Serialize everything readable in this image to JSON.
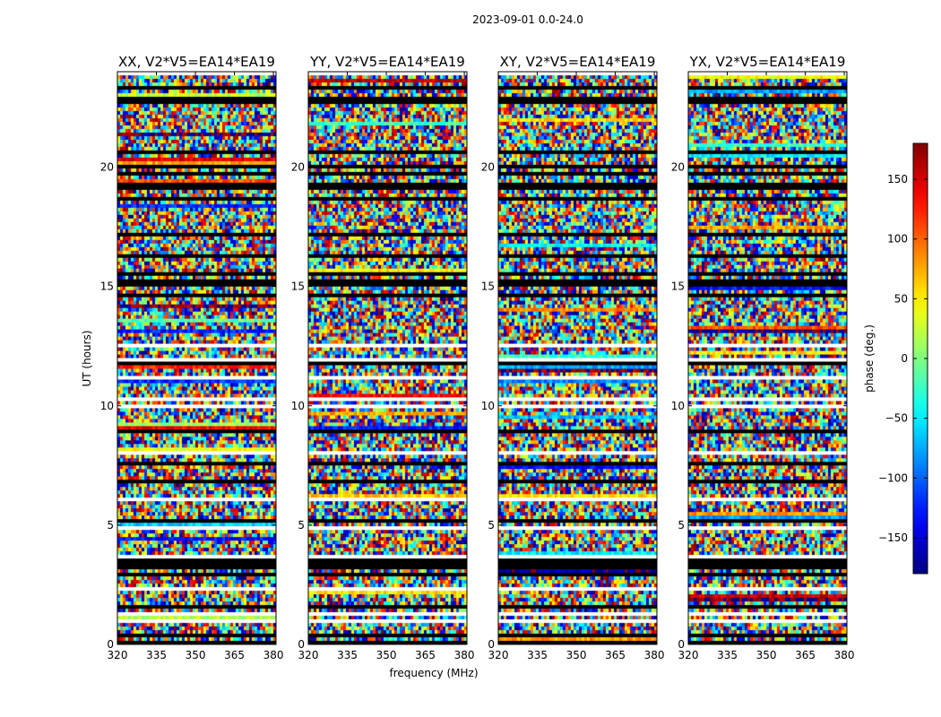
{
  "chart_data": {
    "type": "heatmap",
    "suptitle": "2023-09-01 0.0-24.0",
    "panels": [
      {
        "title": "XX, V2*V5=EA14*EA19",
        "seed": 11
      },
      {
        "title": "YY, V2*V5=EA14*EA19",
        "seed": 23
      },
      {
        "title": "XY, V2*V5=EA14*EA19",
        "seed": 37
      },
      {
        "title": "YX, V2*V5=EA14*EA19",
        "seed": 53
      }
    ],
    "xlabel": "frequency (MHz)",
    "ylabel": "UT (hours)",
    "xlim": [
      320,
      381
    ],
    "xticks": [
      "320",
      "335",
      "350",
      "365",
      "380"
    ],
    "xtick_values": [
      320,
      335,
      350,
      365,
      380
    ],
    "ylim": [
      0,
      24
    ],
    "yticks": [
      "0",
      "5",
      "10",
      "15",
      "20"
    ],
    "ytick_values": [
      0,
      5,
      10,
      15,
      20
    ],
    "colorbar": {
      "label": "phase (deg.)",
      "range": [
        -180,
        180
      ],
      "ticks": [
        "−150",
        "−100",
        "−50",
        "0",
        "50",
        "100",
        "150"
      ],
      "tick_values": [
        -150,
        -100,
        -50,
        0,
        50,
        100,
        150
      ],
      "colormap": "jet"
    },
    "colors": {
      "flagged_row": "#000000",
      "blank_row": "#ffffff"
    }
  }
}
